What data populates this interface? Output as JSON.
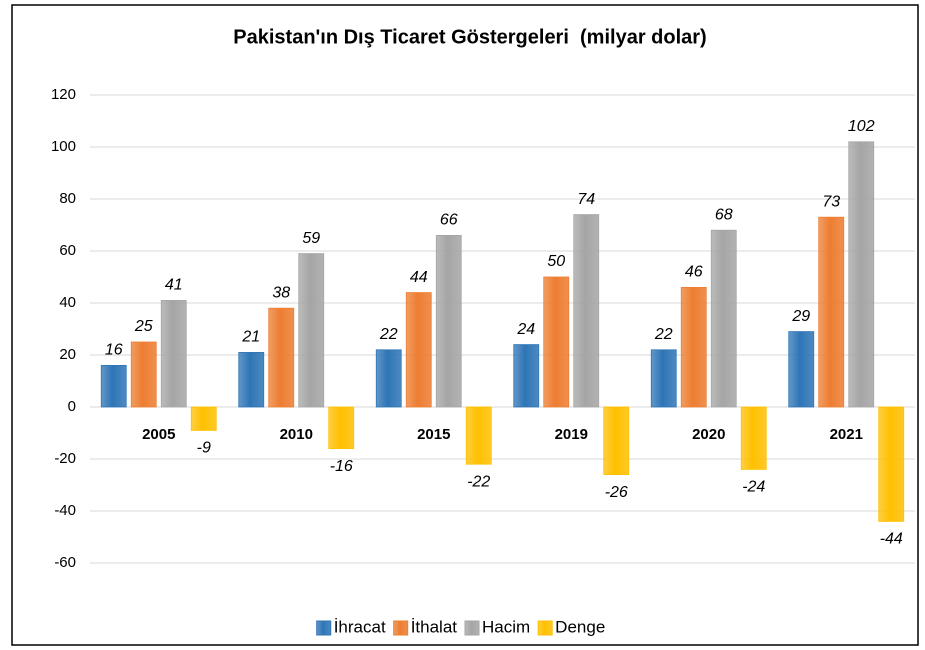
{
  "chart_data": {
    "type": "bar",
    "title": "Pakistan'ın Dış Ticaret Göstergeleri  (milyar dolar)",
    "categories": [
      "2005",
      "2010",
      "2015",
      "2019",
      "2020",
      "2021"
    ],
    "series": [
      {
        "name": "İhracat",
        "color": "#2e75b6",
        "values": [
          16,
          21,
          22,
          24,
          22,
          29
        ]
      },
      {
        "name": "İthalat",
        "color": "#ed7d31",
        "values": [
          25,
          38,
          44,
          50,
          46,
          73
        ]
      },
      {
        "name": "Hacim",
        "color": "#a5a5a5",
        "values": [
          41,
          59,
          66,
          74,
          68,
          102
        ]
      },
      {
        "name": "Denge",
        "color": "#ffc000",
        "values": [
          -9,
          -16,
          -22,
          -26,
          -24,
          -44
        ]
      }
    ],
    "ylim": [
      -60,
      120
    ],
    "yticks": [
      -60,
      -40,
      -20,
      0,
      20,
      40,
      60,
      80,
      100,
      120
    ],
    "grid": true,
    "legend": "bottom"
  }
}
